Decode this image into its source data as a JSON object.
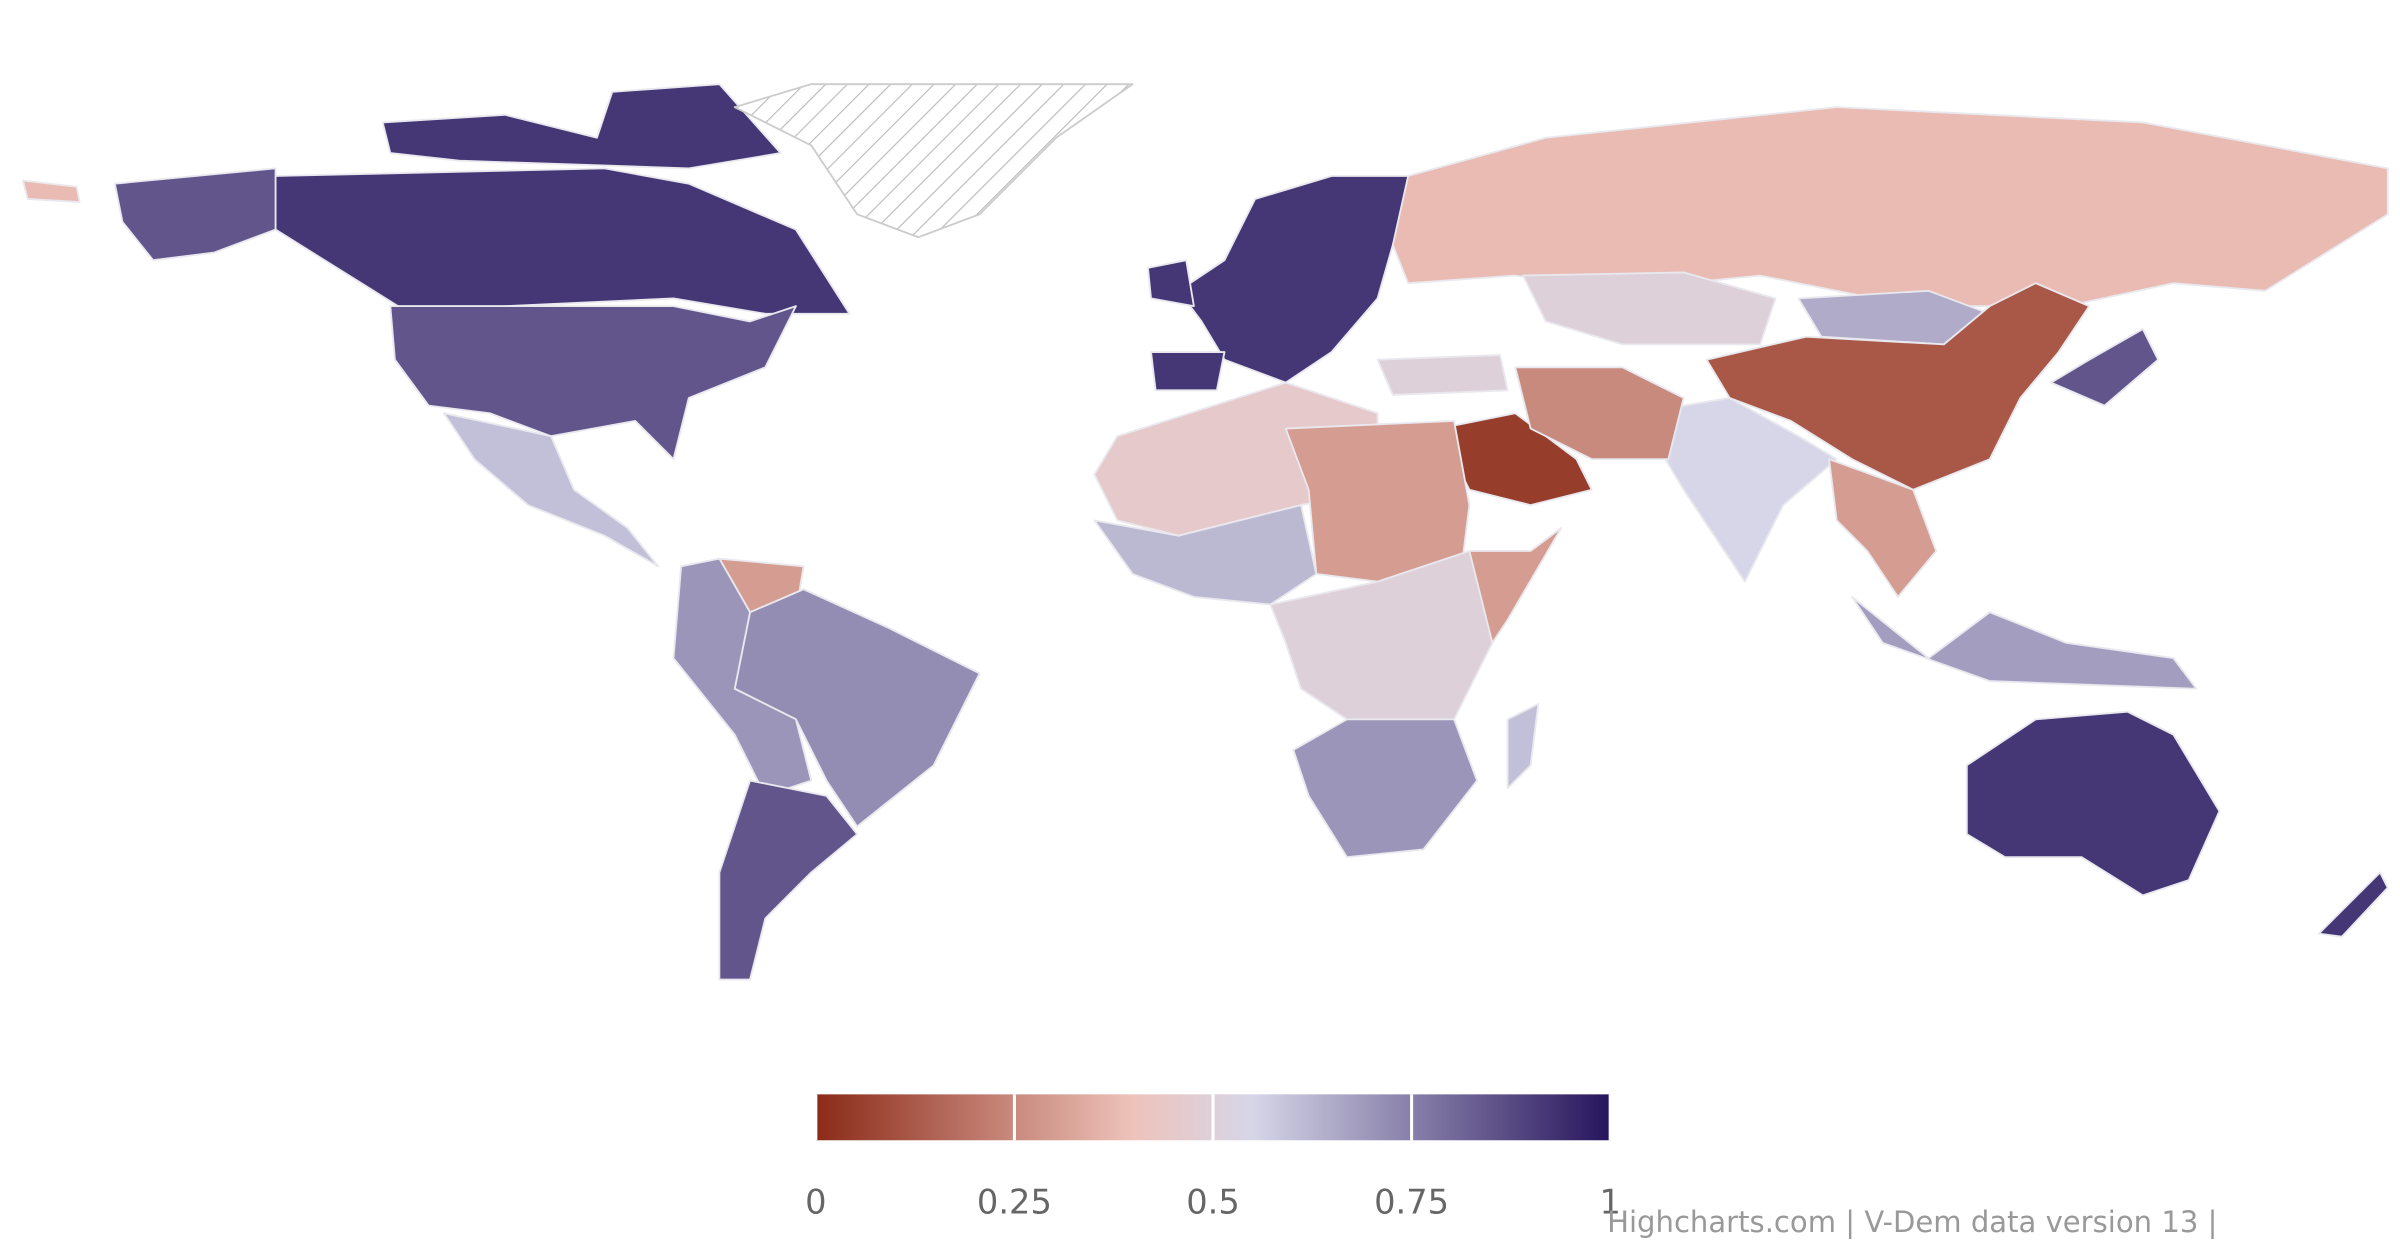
{
  "chart_data": {
    "type": "map",
    "values": [
      0.92,
      0.85,
      0.6,
      0.3,
      0.72,
      0.7,
      0.85,
      null,
      0.92,
      0.38,
      0.5,
      0.65,
      0.12,
      0.55,
      0.05,
      0.25,
      0.5,
      0.45,
      0.3,
      0.62,
      0.5,
      0.3,
      0.7,
      0.6,
      0.3,
      0.68,
      0.85,
      0.92,
      0.92
    ],
    "color_stops": [
      [
        0,
        "#8b2a17"
      ],
      [
        0.4,
        "#eec3bb"
      ],
      [
        0.55,
        "#d6d6e8"
      ],
      [
        1,
        "#26145c"
      ]
    ],
    "colorbar": {
      "xlim": [
        0,
        1
      ],
      "xticks": [
        0,
        0.25,
        0.5,
        0.75,
        1
      ]
    },
    "credits": "Highcharts.com | V-Dem data version 13 |"
  }
}
